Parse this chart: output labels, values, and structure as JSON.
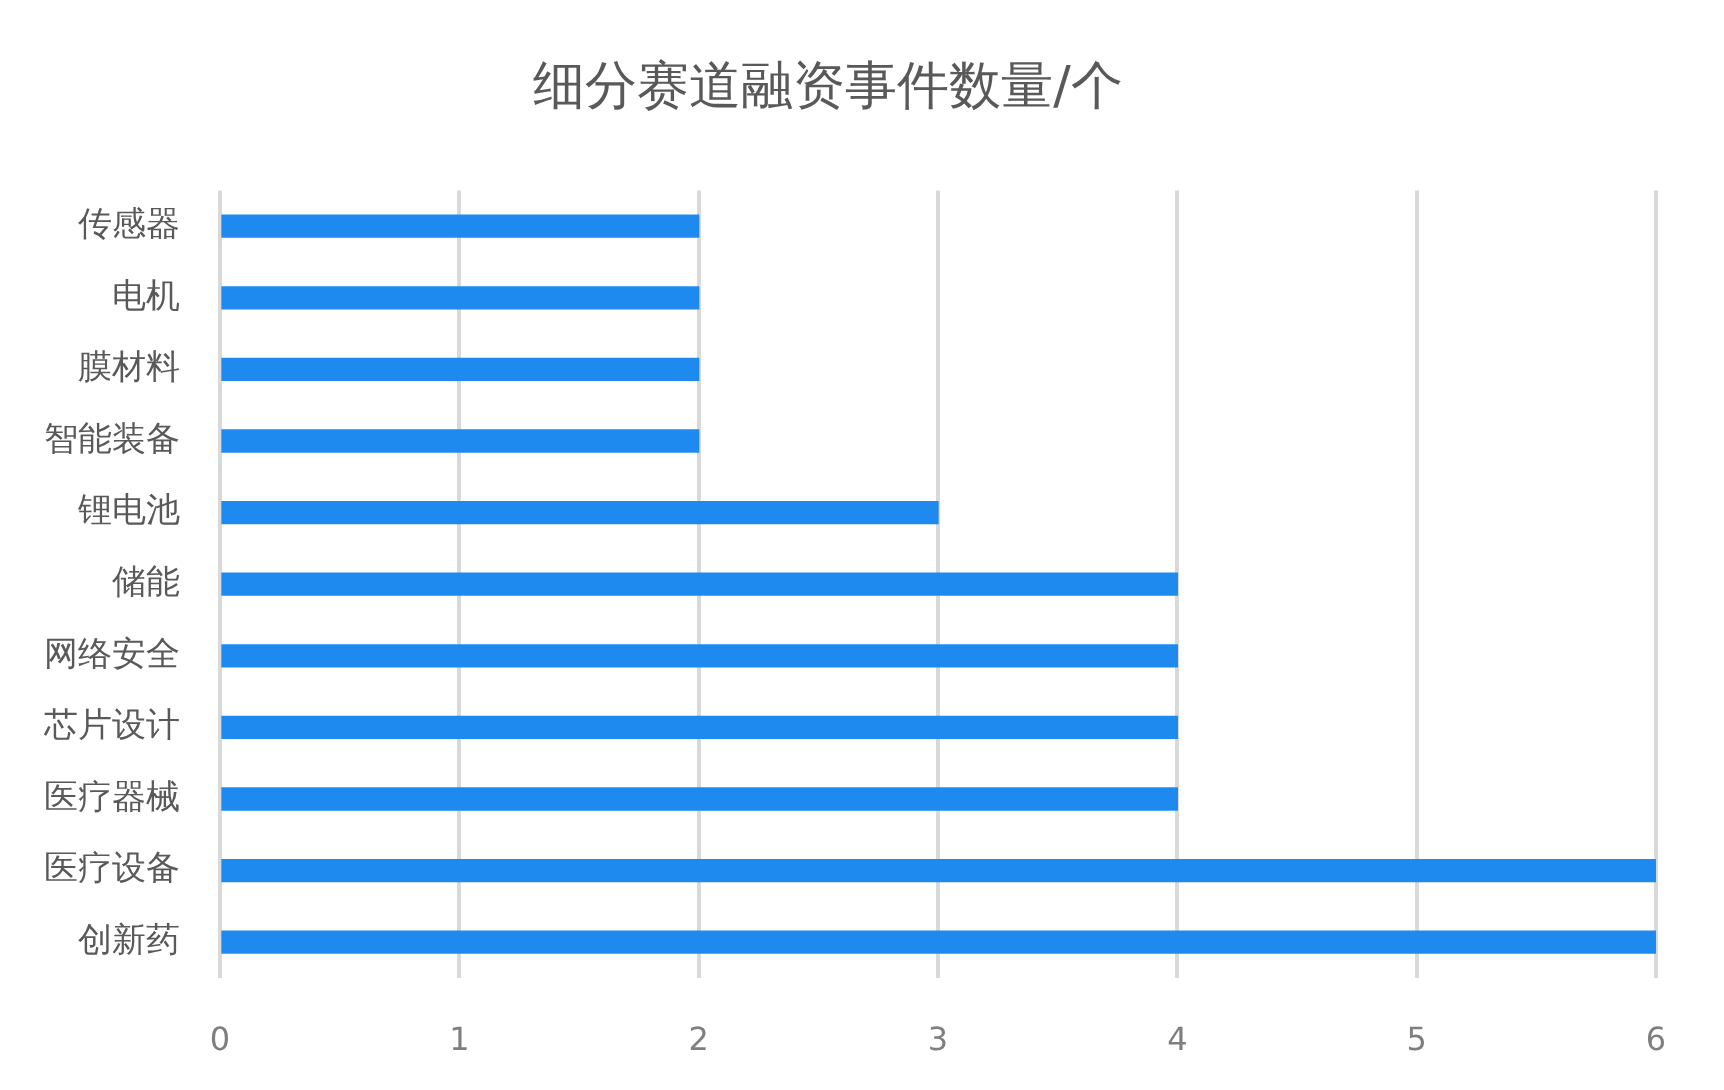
{
  "chart_data": {
    "type": "bar",
    "orientation": "horizontal",
    "title": "细分赛道融资事件数量/个",
    "categories": [
      "传感器",
      "电机",
      "膜材料",
      "智能装备",
      "锂电池",
      "储能",
      "网络安全",
      "芯片设计",
      "医疗器械",
      "医疗设备",
      "创新药"
    ],
    "values": [
      2,
      2,
      2,
      2,
      3,
      4,
      4,
      4,
      4,
      6,
      6
    ],
    "color": "#1e8af0",
    "xlim": [
      0,
      6
    ],
    "xticks": [
      0,
      1,
      2,
      3,
      4,
      5,
      6
    ],
    "grid": "x"
  }
}
